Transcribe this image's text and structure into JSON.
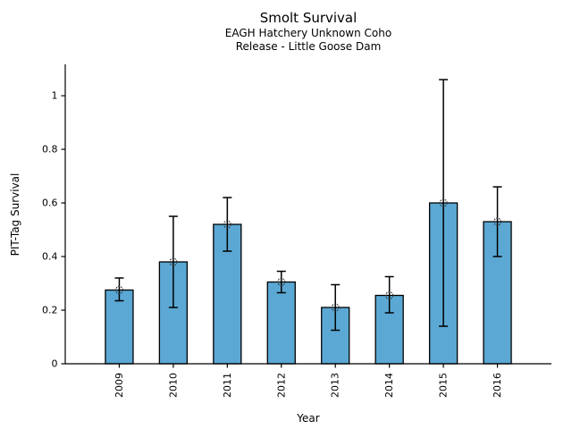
{
  "chart_data": {
    "type": "bar",
    "title": "Smolt Survival",
    "subtitle": [
      "EAGH Hatchery Unknown Coho",
      "Release - Little Goose Dam"
    ],
    "xlabel": "Year",
    "ylabel": "PIT-Tag Survival",
    "categories": [
      "2009",
      "2010",
      "2011",
      "2012",
      "2013",
      "2014",
      "2015",
      "2016"
    ],
    "series": [
      {
        "name": "PIT-Tag Survival",
        "values": [
          0.275,
          0.38,
          0.52,
          0.305,
          0.21,
          0.255,
          0.6,
          0.53
        ],
        "error_low": [
          0.235,
          0.21,
          0.42,
          0.265,
          0.125,
          0.19,
          0.14,
          0.4
        ],
        "error_high": [
          0.32,
          0.55,
          0.62,
          0.345,
          0.295,
          0.325,
          1.06,
          0.66
        ]
      }
    ],
    "yticks": [
      0,
      0.2,
      0.4,
      0.6,
      0.8,
      1
    ],
    "ytick_labels": [
      "0",
      "0.2",
      "0.4",
      "0.6",
      "0.8",
      "1"
    ],
    "ylim": [
      0,
      1.117
    ],
    "grid": false,
    "legend": "none",
    "marker": "open-circle",
    "colors": {
      "bar_fill": "#5BA8D4",
      "bar_edge": "#000000",
      "error_bar": "#000000",
      "marker_edge": "#333333",
      "axis": "#000000",
      "text": "#000000"
    }
  }
}
